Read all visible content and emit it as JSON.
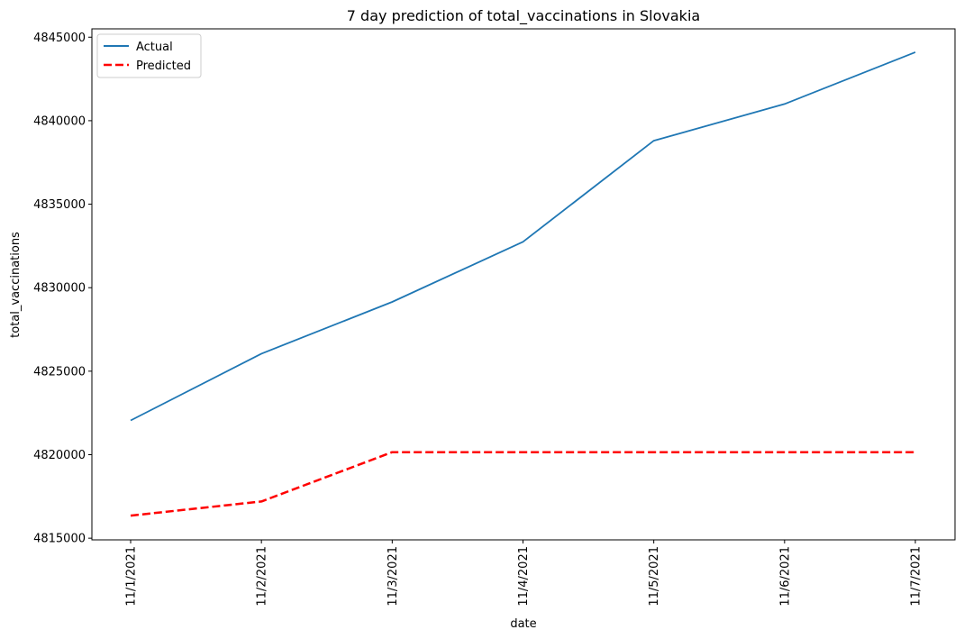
{
  "chart_data": {
    "type": "line",
    "title": "7 day prediction of total_vaccinations in Slovakia",
    "xlabel": "date",
    "ylabel": "total_vaccinations",
    "categories": [
      "11/1/2021",
      "11/2/2021",
      "11/3/2021",
      "11/4/2021",
      "11/5/2021",
      "11/6/2021",
      "11/7/2021"
    ],
    "yticks": [
      "4815000",
      "4820000",
      "4825000",
      "4830000",
      "4835000",
      "4840000",
      "4845000"
    ],
    "ylim": [
      4814900,
      4845500
    ],
    "grid": false,
    "legend_position": "top-left",
    "series": [
      {
        "name": "Actual",
        "color": "#1f77b4",
        "style": "solid",
        "values": [
          4822050,
          4826050,
          4829150,
          4832750,
          4838800,
          4841000,
          4844100
        ]
      },
      {
        "name": "Predicted",
        "color": "#ff0000",
        "style": "dashed",
        "values": [
          4816350,
          4817200,
          4820150,
          4820150,
          4820150,
          4820150,
          4820150
        ]
      }
    ]
  }
}
